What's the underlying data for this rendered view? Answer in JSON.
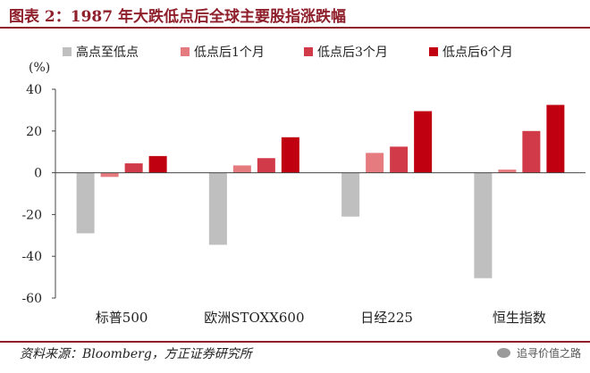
{
  "title": "图表 2：1987 年大跌低点后全球主要股指涨跌幅",
  "source": "资料来源：Bloomberg，方正证券研究所",
  "watermark": "追寻价值之路",
  "colors": {
    "title": "#8e1f2b",
    "rule": "#8e1f2b",
    "series": [
      "#bfbfbf",
      "#e57b7e",
      "#d13a48",
      "#c00010"
    ]
  },
  "chart_data": {
    "type": "bar",
    "unit_label": "(%)",
    "categories": [
      "标普500",
      "欧洲STOXX600",
      "日经225",
      "恒生指数"
    ],
    "series": [
      {
        "name": "高点至低点",
        "values": [
          -29,
          -34.5,
          -21,
          -50.5
        ]
      },
      {
        "name": "低点后1个月",
        "values": [
          -2,
          3.5,
          9.5,
          1.5
        ]
      },
      {
        "name": "低点后3个月",
        "values": [
          4.5,
          7,
          12.5,
          20
        ]
      },
      {
        "name": "低点后6个月",
        "values": [
          8,
          17,
          29.5,
          32.5
        ]
      }
    ],
    "ylim": [
      -60,
      40
    ],
    "yticks": [
      40,
      20,
      0,
      -20,
      -40,
      -60
    ],
    "legend_position": "top",
    "grid": false
  }
}
